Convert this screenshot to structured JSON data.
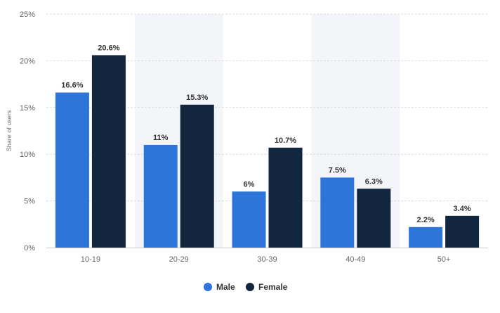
{
  "chart_data": {
    "type": "bar",
    "categories": [
      "10-19",
      "20-29",
      "30-39",
      "40-49",
      "50+"
    ],
    "series": [
      {
        "name": "Male",
        "values": [
          16.6,
          11,
          6,
          7.5,
          2.2
        ],
        "labels": [
          "16.6%",
          "11%",
          "6%",
          "7.5%",
          "2.2%"
        ],
        "color": "#2e75d9"
      },
      {
        "name": "Female",
        "values": [
          20.6,
          15.3,
          10.7,
          6.3,
          3.4
        ],
        "labels": [
          "20.6%",
          "15.3%",
          "10.7%",
          "6.3%",
          "3.4%"
        ],
        "color": "#12263f"
      }
    ],
    "title": "",
    "xlabel": "",
    "ylabel": "Share of users",
    "ylim": [
      0,
      25
    ],
    "yticks": [
      0,
      5,
      10,
      15,
      20,
      25
    ],
    "ytick_labels": [
      "0%",
      "5%",
      "10%",
      "15%",
      "20%",
      "25%"
    ],
    "grid": true,
    "shaded_categories": [
      "20-29",
      "40-49"
    ],
    "shade_color": "#f4f5f8",
    "legend": "bottom-center"
  }
}
